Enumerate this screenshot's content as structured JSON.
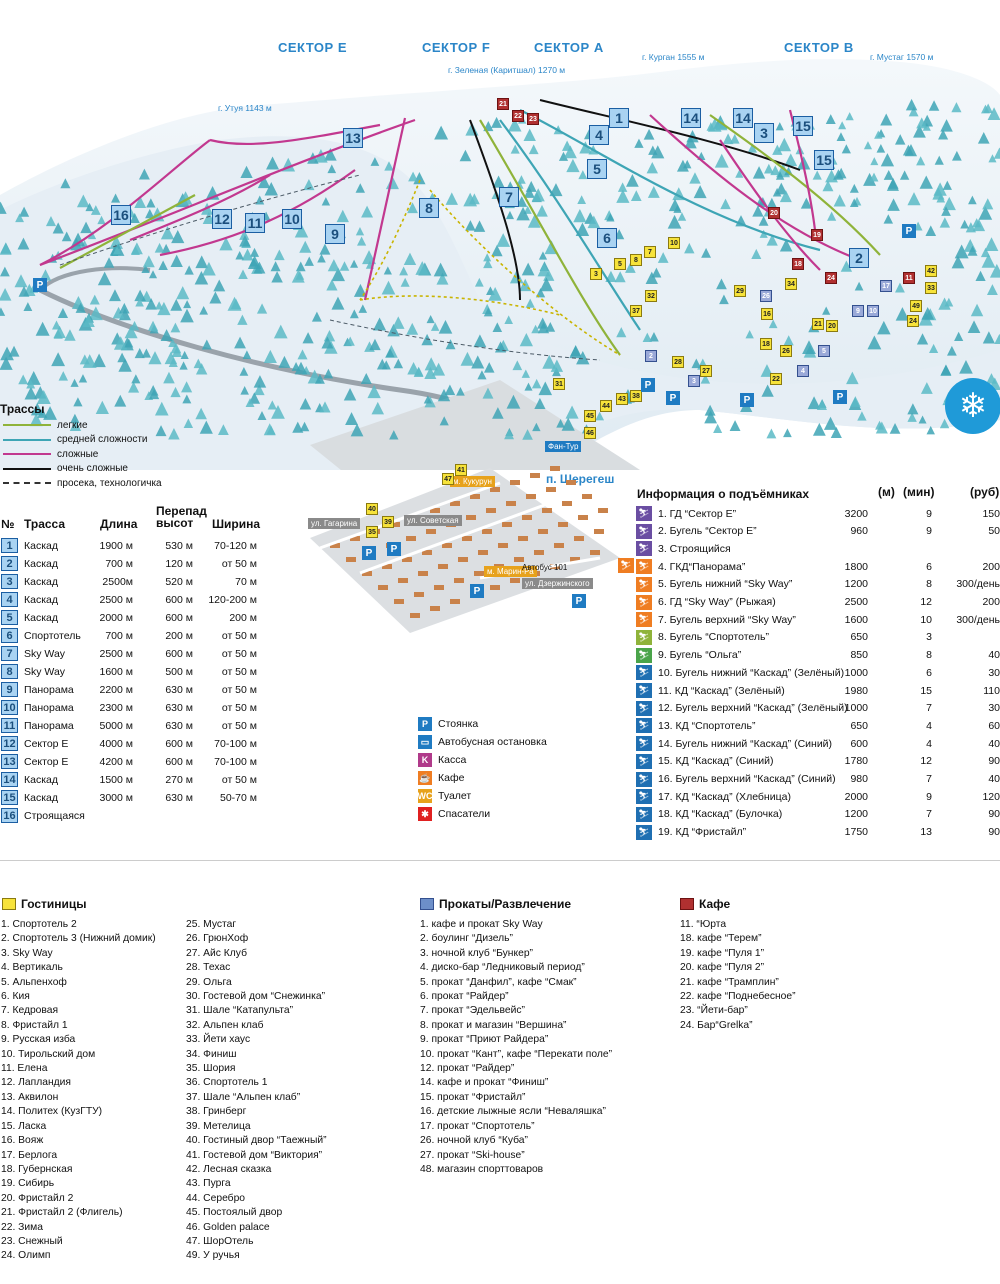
{
  "map": {
    "sectors": [
      "СЕКТОР E",
      "СЕКТОР F",
      "СЕКТОР A",
      "СЕКТОР B"
    ],
    "peaks": [
      "г. Утуя 1143 м",
      "г. Зеленая (Каритшал) 1270 м",
      "г. Курган  1555 м",
      "г. Мустаг  1570 м"
    ],
    "town": "п. Шерегеш",
    "streets": [
      "ул. Гагарина",
      "ул. Советская",
      "ул. Дзержинского",
      "м. Марин-Ра",
      "м. Кукурун"
    ],
    "bus": "Автобус 101",
    "fantour": "Фан-Тур",
    "colors": {
      "easy": "#8fb33a",
      "medium": "#3ea5b5",
      "hard": "#c2388f",
      "very_hard": "#111111",
      "path": "#333333",
      "trail_marker": "#3f8fd0",
      "hotel": "#f7e33a",
      "rental": "#9aa9d8",
      "cafe": "#b03030",
      "parking": "#1f7bc2",
      "lift_purple": "#6a4ea2",
      "lift_orange": "#ef7d22",
      "lift_green": "#4aa44a",
      "lift_blue": "#1f6fb2"
    }
  },
  "legend": {
    "title": "Трассы",
    "items": [
      {
        "label": "легкие",
        "color": "#8fb33a"
      },
      {
        "label": "средней сложности",
        "color": "#3ea5b5"
      },
      {
        "label": "сложные",
        "color": "#c2388f"
      },
      {
        "label": "очень сложные",
        "color": "#111111"
      },
      {
        "label": "просека, технологичка",
        "color": "#333333"
      }
    ]
  },
  "trails": {
    "headers": {
      "no": "№",
      "name": "Трасса",
      "length": "Длина",
      "drop": "Перепад высот",
      "width": "Ширина"
    },
    "rows": [
      {
        "no": "1",
        "name": "Каскад",
        "length": "1900 м",
        "drop": "530 м",
        "width": "70-120 м"
      },
      {
        "no": "2",
        "name": "Каскад",
        "length": "700 м",
        "drop": "120 м",
        "width": "от 50 м"
      },
      {
        "no": "3",
        "name": "Каскад",
        "length": "2500м",
        "drop": "520 м",
        "width": "70 м"
      },
      {
        "no": "4",
        "name": "Каскад",
        "length": "2500 м",
        "drop": "600 м",
        "width": "120-200 м"
      },
      {
        "no": "5",
        "name": "Каскад",
        "length": "2000 м",
        "drop": "600 м",
        "width": "200 м"
      },
      {
        "no": "6",
        "name": "Спортотель",
        "length": "700 м",
        "drop": "200 м",
        "width": "от 50 м"
      },
      {
        "no": "7",
        "name": "Sky Way",
        "length": "2500 м",
        "drop": "600 м",
        "width": "от 50 м"
      },
      {
        "no": "8",
        "name": "Sky Way",
        "length": "1600 м",
        "drop": "500 м",
        "width": "от 50 м"
      },
      {
        "no": "9",
        "name": "Панорама",
        "length": "2200 м",
        "drop": "630 м",
        "width": "от 50 м"
      },
      {
        "no": "10",
        "name": "Панорама",
        "length": "2300 м",
        "drop": "630 м",
        "width": "от 50 м"
      },
      {
        "no": "11",
        "name": "Панорама",
        "length": "5000 м",
        "drop": "630 м",
        "width": "от 50 м"
      },
      {
        "no": "12",
        "name": "Сектор Е",
        "length": "4000 м",
        "drop": "600 м",
        "width": "70-100 м"
      },
      {
        "no": "13",
        "name": "Сектор Е",
        "length": "4200 м",
        "drop": "600 м",
        "width": "70-100 м"
      },
      {
        "no": "14",
        "name": "Каскад",
        "length": "1500 м",
        "drop": "270 м",
        "width": "от 50 м"
      },
      {
        "no": "15",
        "name": "Каскад",
        "length": "3000 м",
        "drop": "630 м",
        "width": "50-70 м"
      },
      {
        "no": "16",
        "name": "Строящаяся",
        "length": "",
        "drop": "",
        "width": ""
      }
    ]
  },
  "services": [
    {
      "icon": "P",
      "label": "Стоянка",
      "color": "#1f7bc2"
    },
    {
      "icon": "bus",
      "label": "Автобусная остановка",
      "color": "#1f7bc2"
    },
    {
      "icon": "K",
      "label": "Касса",
      "color": "#b03a8a"
    },
    {
      "icon": "cafe",
      "label": "Кафе",
      "color": "#ef7d22"
    },
    {
      "icon": "WC",
      "label": "Туалет",
      "color": "#e7a21c"
    },
    {
      "icon": "✱",
      "label": "Спасатели",
      "color": "#e02020"
    }
  ],
  "lifts": {
    "title": "Информация о подъёмниках",
    "units": [
      "(м)",
      "(мин)",
      "(руб)"
    ],
    "rows": [
      {
        "name": "1. ГД “Сектор Е”",
        "len": "3200",
        "min": "9",
        "rub": "150",
        "color": "#6a4ea2"
      },
      {
        "name": "2. Бугель “Сектор Е”",
        "len": "960",
        "min": "9",
        "rub": "50",
        "color": "#6a4ea2"
      },
      {
        "name": "3. Строящийся",
        "len": "",
        "min": "",
        "rub": "",
        "color": "#6a4ea2"
      },
      {
        "name": "4. ГКД“Панорама”",
        "len": "1800",
        "min": "6",
        "rub": "200",
        "color": "#ef7d22"
      },
      {
        "name": "5. Бугель нижний “Sky Way”",
        "len": "1200",
        "min": "8",
        "rub": "300/день",
        "color": "#ef7d22"
      },
      {
        "name": "6. ГД “Sky Way” (Рыжая)",
        "len": "2500",
        "min": "12",
        "rub": "200",
        "color": "#ef7d22"
      },
      {
        "name": "7. Бугель верхний “Sky Way”",
        "len": "1600",
        "min": "10",
        "rub": "300/день",
        "color": "#ef7d22"
      },
      {
        "name": "8. Бугель “Спортотель”",
        "len": "650",
        "min": "3",
        "rub": "",
        "color": "#8fb33a"
      },
      {
        "name": "9. Бугель “Ольга”",
        "len": "850",
        "min": "8",
        "rub": "40",
        "color": "#4aa44a"
      },
      {
        "name": "10. Бугель нижний “Каскад” (Зелёный)",
        "len": "1000",
        "min": "6",
        "rub": "30",
        "color": "#1f6fb2"
      },
      {
        "name": "11. КД “Каскад” (Зелёный)",
        "len": "1980",
        "min": "15",
        "rub": "110",
        "color": "#1f6fb2"
      },
      {
        "name": "12. Бугель верхний “Каскад”  (Зелёный)",
        "len": "1000",
        "min": "7",
        "rub": "30",
        "color": "#1f6fb2"
      },
      {
        "name": "13. КД  “Спортотель”",
        "len": "650",
        "min": "4",
        "rub": "60",
        "color": "#1f6fb2"
      },
      {
        "name": "14. Бугель нижний “Каскад” (Синий)",
        "len": "600",
        "min": "4",
        "rub": "40",
        "color": "#1f6fb2"
      },
      {
        "name": "15. КД “Каскад” (Синий)",
        "len": "1780",
        "min": "12",
        "rub": "90",
        "color": "#1f6fb2"
      },
      {
        "name": "16. Бугель верхний “Каскад” (Синий)",
        "len": "980",
        "min": "7",
        "rub": "40",
        "color": "#1f6fb2"
      },
      {
        "name": "17. КД “Каскад” (Хлебница)",
        "len": "2000",
        "min": "9",
        "rub": "120",
        "color": "#1f6fb2"
      },
      {
        "name": "18. КД “Каскад” (Булочка)",
        "len": "1200",
        "min": "7",
        "rub": "90",
        "color": "#1f6fb2"
      },
      {
        "name": "19. КД “Фристайл”",
        "len": "1750",
        "min": "13",
        "rub": "90",
        "color": "#1f6fb2"
      }
    ]
  },
  "hotels": {
    "title": "Гостиницы",
    "col1": [
      "1. Спортотель 2",
      "2. Спортотель 3 (Нижний домик)",
      "3. Sky Way",
      "4. Вертикаль",
      "5. Альпенхоф",
      "6. Кия",
      "7. Кедровая",
      "8. Фристайл 1",
      "9. Русская изба",
      "10. Тирольский дом",
      "11. Елена",
      "12. Лапландия",
      "13. Аквилон",
      "14. Политех (КузГТУ)",
      "15. Ласка",
      "16. Вояж",
      "17. Берлога",
      "18. Губернская",
      "19. Сибирь",
      "20. Фристайл 2",
      "21. Фристайл 2 (Флигель)",
      "22. Зима",
      "23. Снежный",
      "24. Олимп"
    ],
    "col2": [
      "25. Мустаг",
      "26. ГрюнХоф",
      "27. Айс Клуб",
      "28. Техас",
      "29. Ольга",
      "30. Гостевой дом “Снежинка”",
      "31. Шале “Катапульта”",
      "32. Альпен клаб",
      "33. Йети хаус",
      "34. Финиш",
      "35. Шория",
      "36. Спортотель 1",
      "37. Шале “Альпен клаб”",
      "38. Гринберг",
      "39. Метелица",
      "40. Гостиный двор “Таежный”",
      "41. Гостевой дом “Виктория”",
      "42. Лесная сказка",
      "43. Пурга",
      "44. Серебро",
      "45. Постоялый двор",
      "46. Golden palace",
      "47. ШорОтель",
      "49. У ручья"
    ]
  },
  "rentals": {
    "title": "Прокаты/Развлечение",
    "items": [
      "1. кафе и прокат Sky Way",
      "2. боулинг “Дизель”",
      "3. ночной клуб “Бункер”",
      "4. диско-бар “Ледниковый период”",
      "5. прокат “Данфил”, кафе “Смак”",
      "6. прокат “Райдер”",
      "7. прокат “Эдельвейс”",
      "8. прокат и магазин “Вершина”",
      "9. прокат “Приют Райдера”",
      "10. прокат “Кант”, кафе “Перекати поле”",
      "12. прокат “Райдер”",
      "14. кафе и прокат “Финиш”",
      "15. прокат “Фристайл”",
      "16. детские лыжные ясли “Неваляшка”",
      "17. прокат “Спортотель”",
      "26. ночной клуб “Куба”",
      "27. прокат “Ski-house”",
      "48. магазин спорттоваров"
    ]
  },
  "cafes": {
    "title": "Кафе",
    "items": [
      "11. “Юрта",
      "18. кафе “Терем”",
      "19. кафе “Пуля 1”",
      "20. кафе “Пуля 2”",
      "21. кафе “Трамплин”",
      "22. кафе “Поднебесное”",
      "23. “Йети-бар”",
      "24. Бар“Grelka”"
    ]
  }
}
